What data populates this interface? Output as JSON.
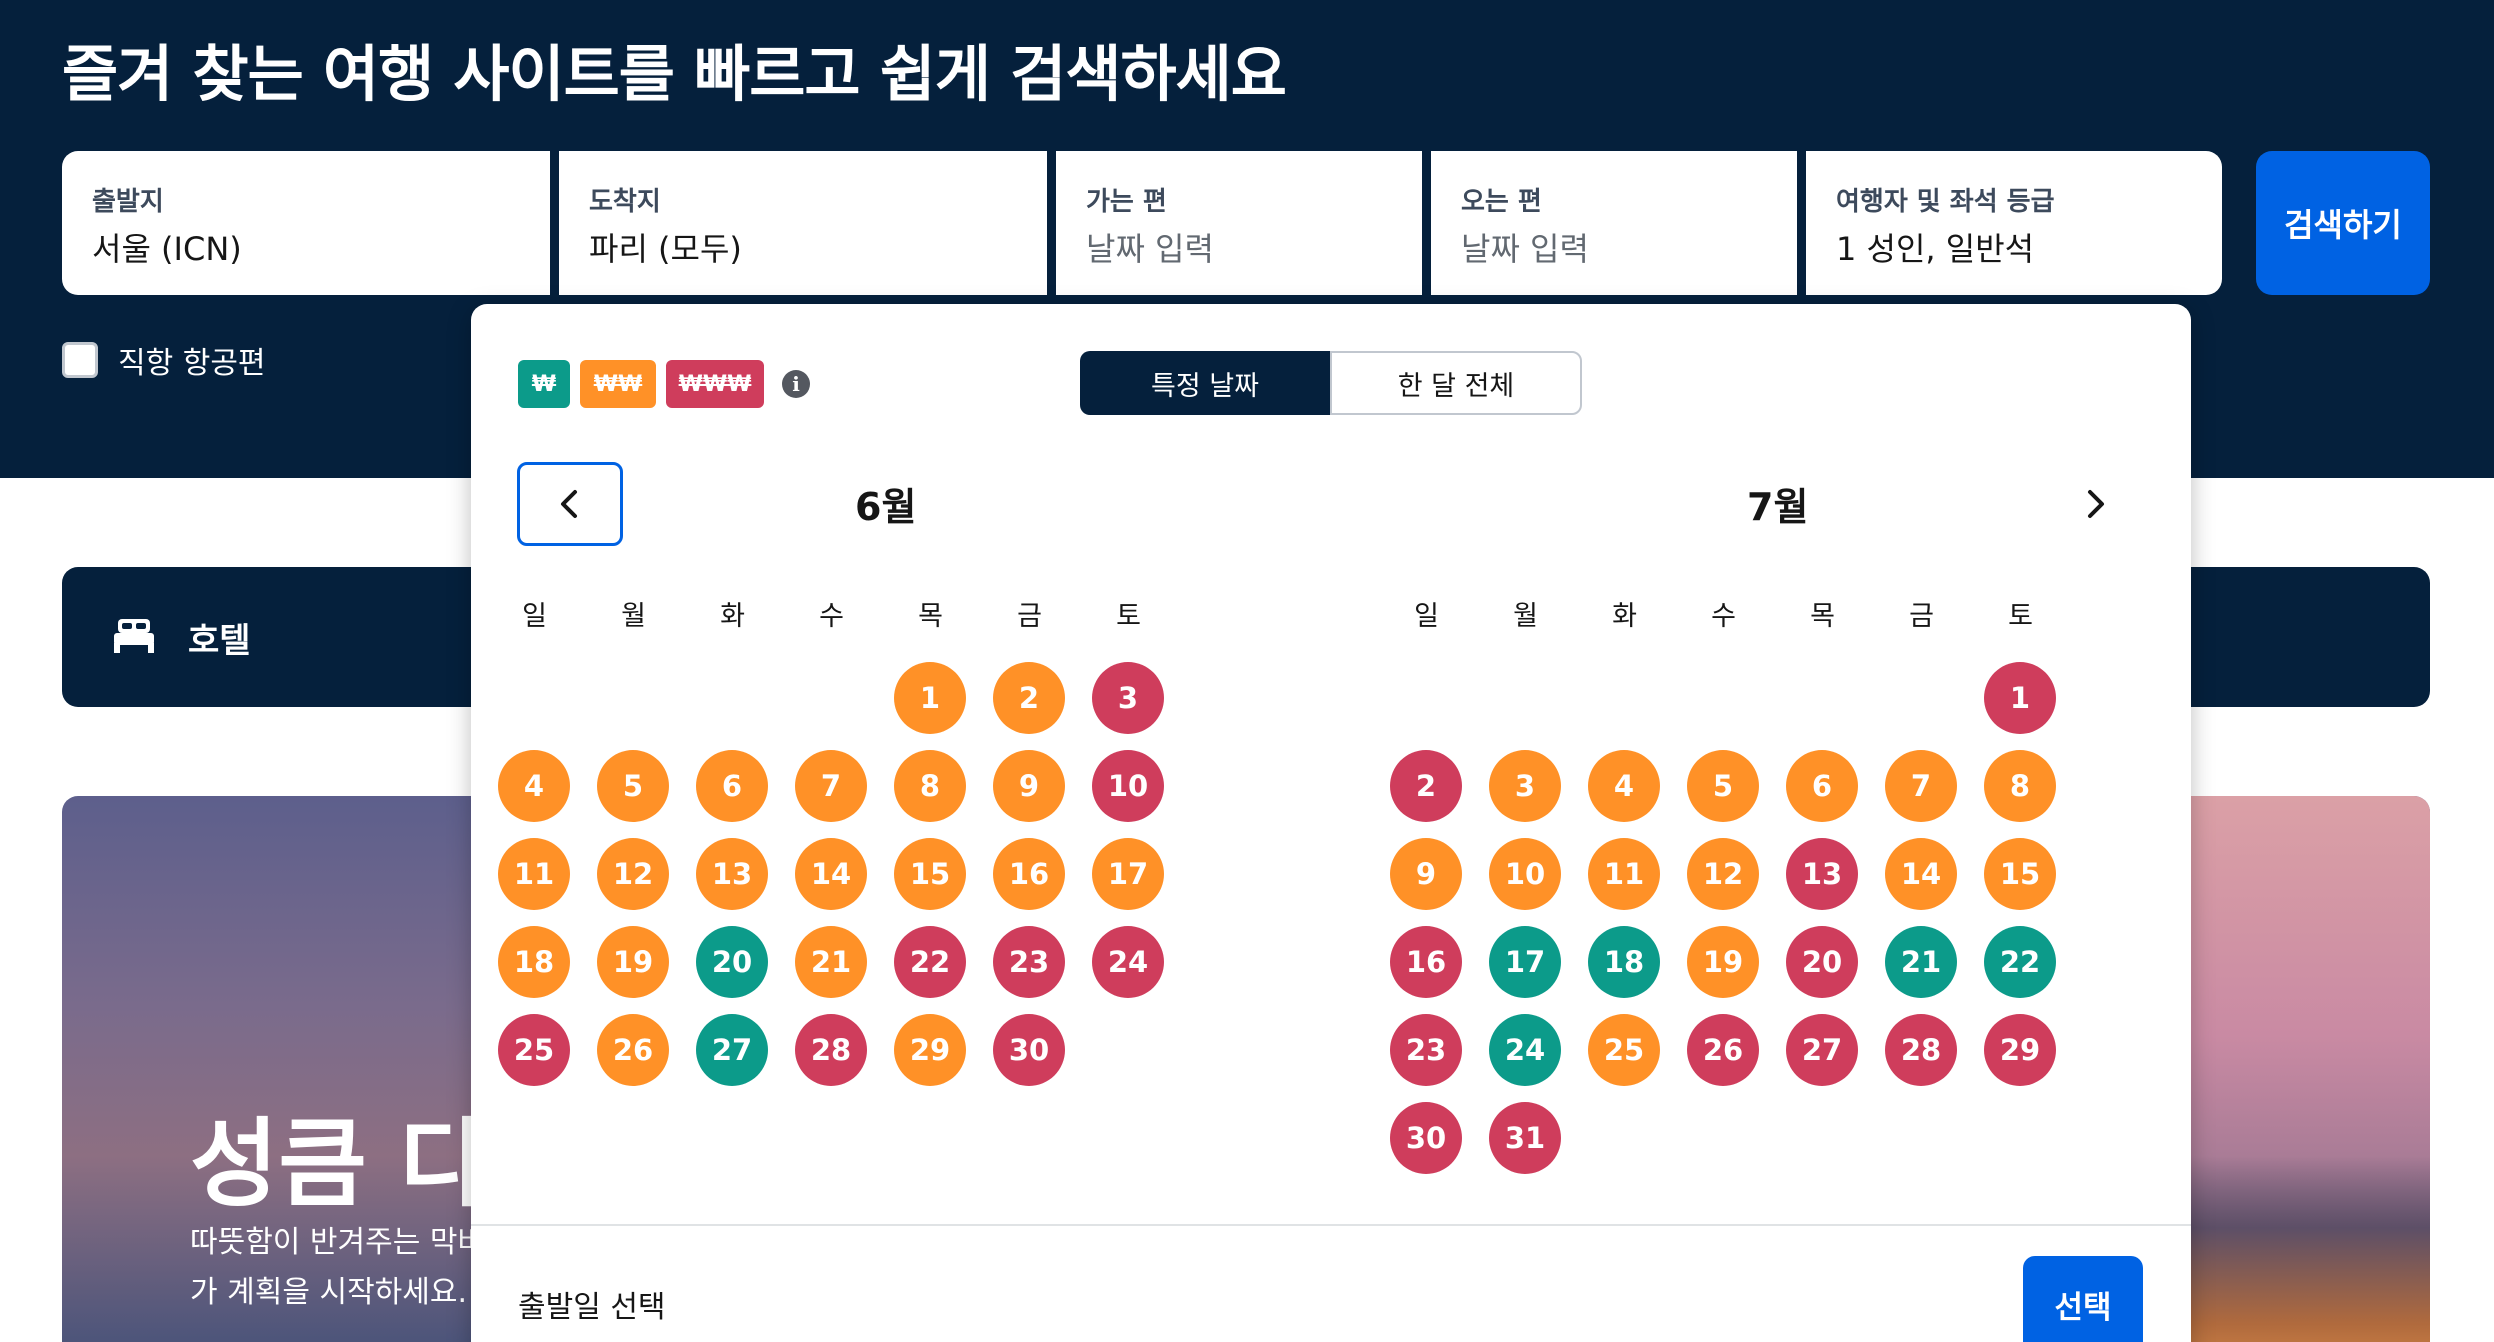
{
  "header": {
    "title": "즐겨 찾는 여행 사이트를 빠르고 쉽게 검색하세요"
  },
  "search_form": {
    "origin": {
      "label": "출발지",
      "value": "서울 (ICN)"
    },
    "destination": {
      "label": "도착지",
      "value": "파리 (모두)"
    },
    "depart": {
      "label": "가는 편",
      "placeholder": "날짜 입력"
    },
    "return": {
      "label": "오는 편",
      "placeholder": "날짜 입력"
    },
    "travellers": {
      "label": "여행자 및 좌석 등급",
      "value": "1 성인, 일반석"
    },
    "search_button": "검색하기",
    "direct_flights": {
      "label": "직항 항공편",
      "checked": false
    }
  },
  "hotel_bar": {
    "label": "호텔",
    "icon": "bed-icon"
  },
  "promo": {
    "title": "성큼 다가",
    "text": "따뜻함이 반겨주는 막바\n가 계획을 시작하세요."
  },
  "date_picker": {
    "price_legend": {
      "low": "₩",
      "mid": "₩₩",
      "high": "₩₩₩",
      "info_icon": "info-icon"
    },
    "tabs": {
      "specific": "특정 날짜",
      "whole_month": "한 달 전체"
    },
    "weekdays": [
      "일",
      "월",
      "화",
      "수",
      "목",
      "금",
      "토"
    ],
    "colors": {
      "low": "#0c9b8a",
      "mid": "#ff9127",
      "high": "#cf3d5c"
    },
    "months": [
      {
        "title": "6월",
        "first_weekday": 4,
        "prices": [
          "mid",
          "mid",
          "high",
          "mid",
          "mid",
          "mid",
          "mid",
          "mid",
          "mid",
          "high",
          "mid",
          "mid",
          "mid",
          "mid",
          "mid",
          "mid",
          "mid",
          "mid",
          "mid",
          "low",
          "mid",
          "high",
          "high",
          "high",
          "high",
          "mid",
          "low",
          "high",
          "mid",
          "high"
        ]
      },
      {
        "title": "7월",
        "first_weekday": 6,
        "prices": [
          "high",
          "high",
          "mid",
          "mid",
          "mid",
          "mid",
          "mid",
          "mid",
          "mid",
          "mid",
          "mid",
          "mid",
          "high",
          "mid",
          "mid",
          "high",
          "low",
          "low",
          "mid",
          "high",
          "low",
          "low",
          "high",
          "low",
          "mid",
          "high",
          "high",
          "high",
          "high",
          "high",
          "high"
        ]
      }
    ],
    "footer_label": "출발일 선택",
    "select_button": "선택"
  }
}
